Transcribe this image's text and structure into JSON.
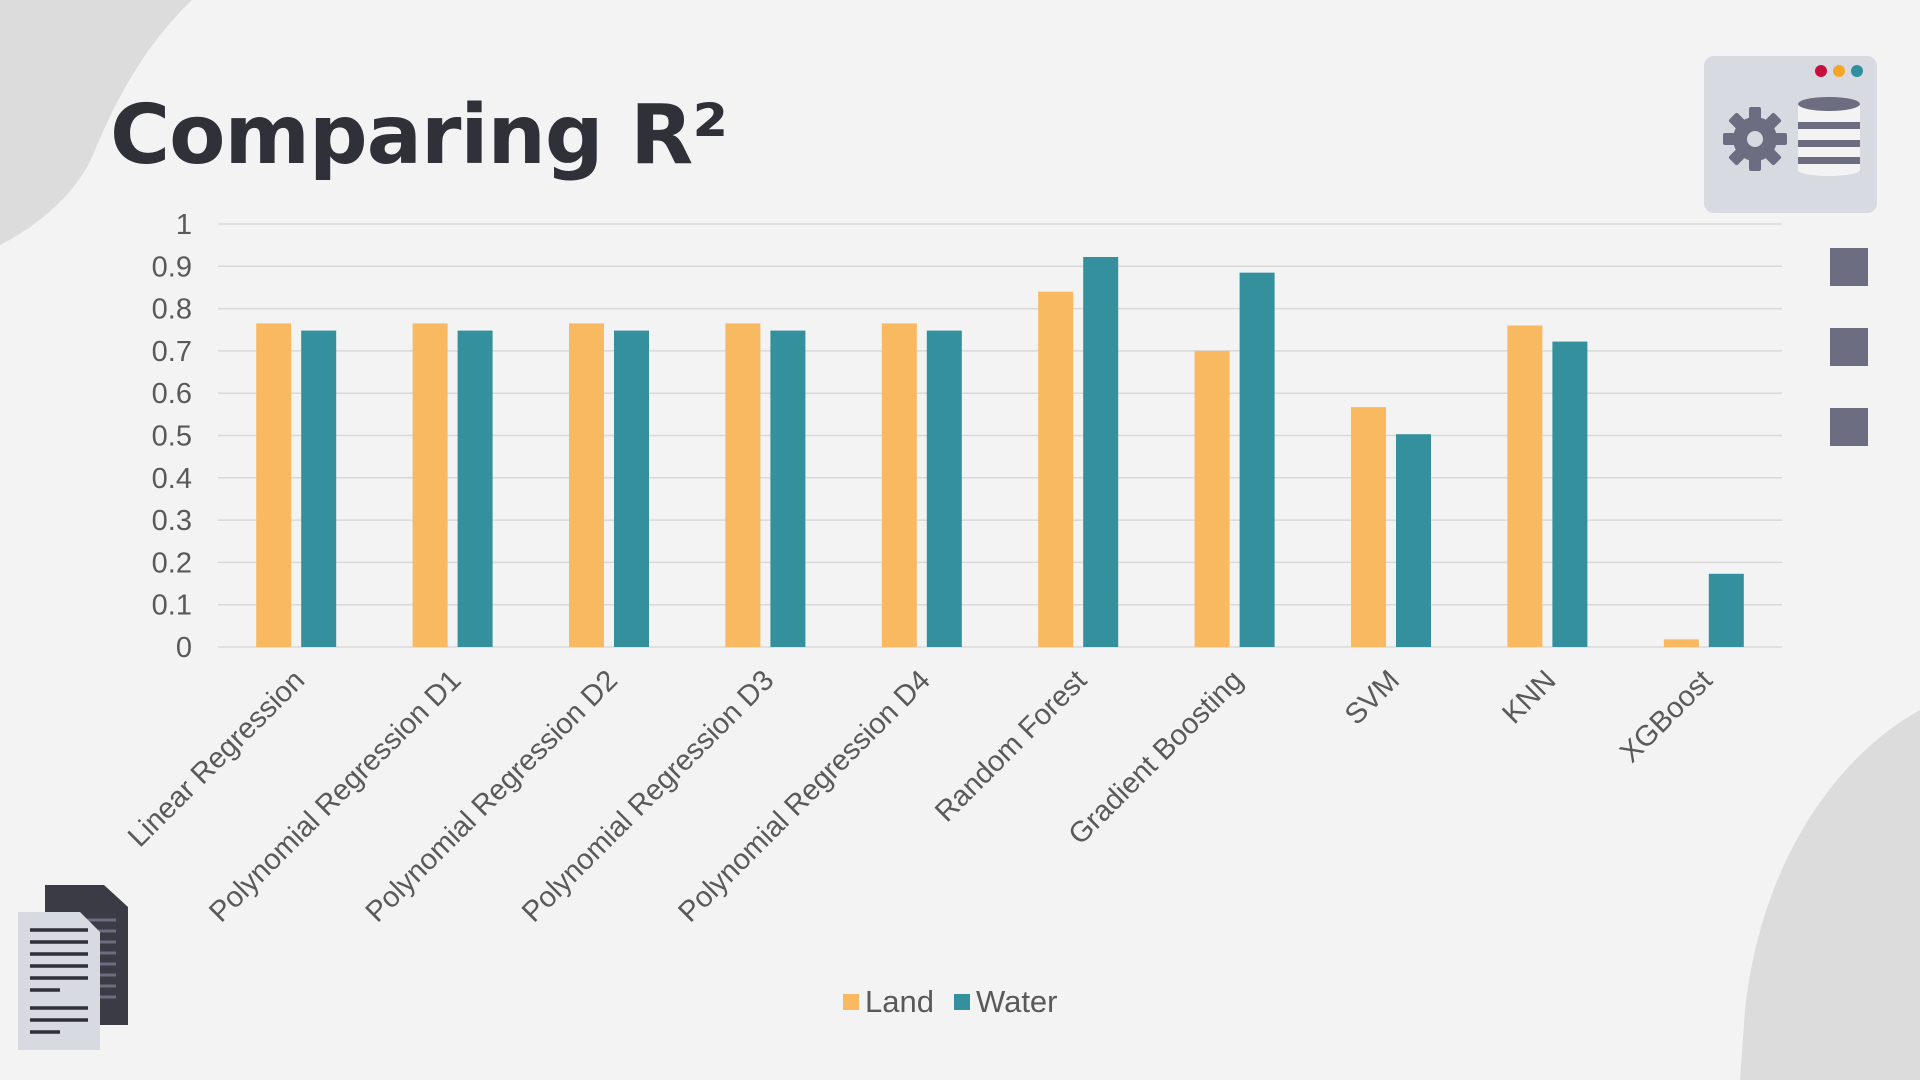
{
  "slide": {
    "title": "Comparing R²"
  },
  "colors": {
    "land": "#f8b960",
    "water": "#33909c",
    "background": "#f3f3f3",
    "title": "#2f3038",
    "icon": "#6c6d80"
  },
  "icons": {
    "top_right": "settings-database-icon",
    "window_dots": [
      "#c8103e",
      "#f5a623",
      "#2f8f9d"
    ],
    "side_squares": [
      "square-icon",
      "square-icon",
      "square-icon"
    ],
    "bottom_left": "documents-icon"
  },
  "chart_data": {
    "type": "bar",
    "categories": [
      "Linear Regression",
      "Polynomial Regression D1",
      "Polynomial Regression D2",
      "Polynomial Regression D3",
      "Polynomial Regression D4",
      "Random Forest",
      "Gradient Boosting",
      "SVM",
      "KNN",
      "XGBoost"
    ],
    "series": [
      {
        "name": "Land",
        "color": "#f8b960",
        "values": [
          0.765,
          0.765,
          0.765,
          0.765,
          0.765,
          0.84,
          0.7,
          0.567,
          0.76,
          0.018
        ]
      },
      {
        "name": "Water",
        "color": "#33909c",
        "values": [
          0.748,
          0.748,
          0.748,
          0.748,
          0.748,
          0.922,
          0.885,
          0.503,
          0.722,
          0.173
        ]
      }
    ],
    "ylim": [
      0,
      1
    ],
    "yticks": [
      "0",
      "0.1",
      "0.2",
      "0.3",
      "0.4",
      "0.5",
      "0.6",
      "0.7",
      "0.8",
      "0.9",
      "1"
    ],
    "grid": true,
    "legend_position": "bottom"
  }
}
